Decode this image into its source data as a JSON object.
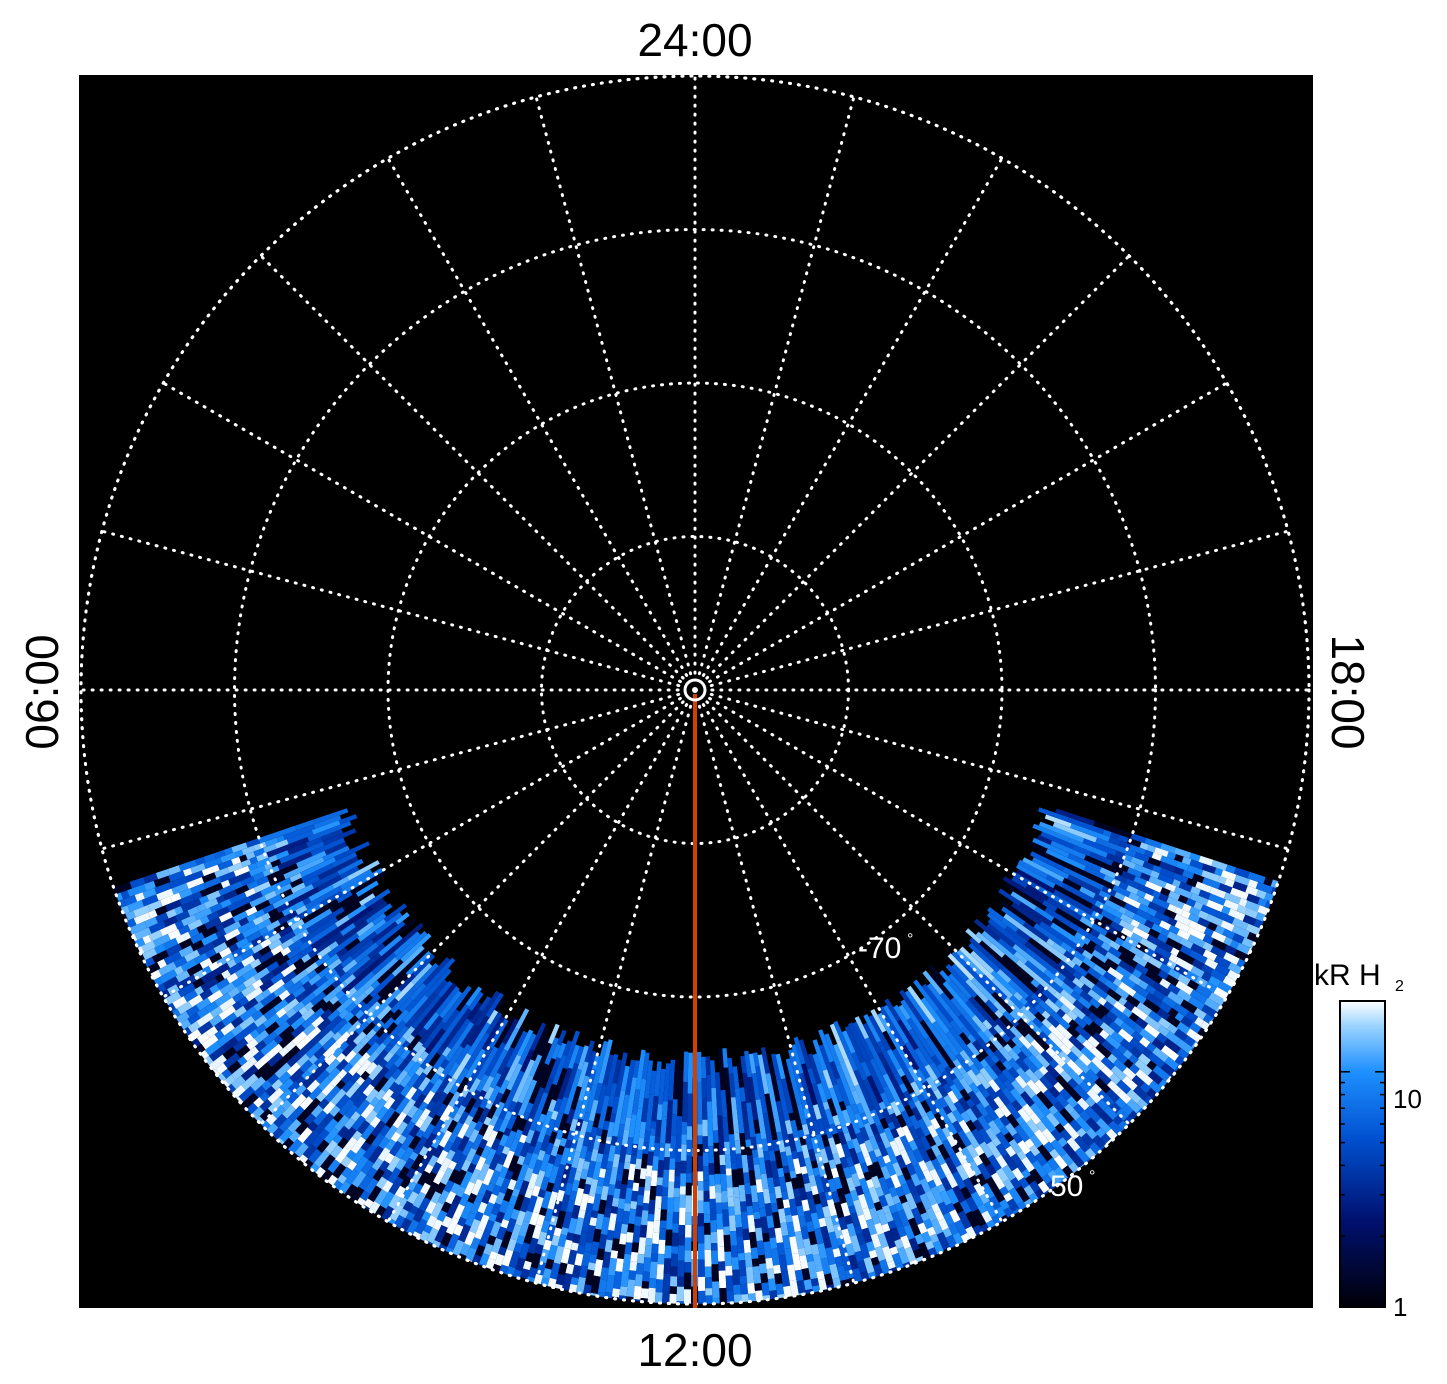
{
  "chart_data": {
    "type": "heatmap",
    "projection": "polar",
    "hemisphere": "south",
    "local_time_labels": {
      "top": "24:00",
      "left": "06:00",
      "right": "18:00",
      "bottom": "12:00"
    },
    "latitude_circles": [
      -90,
      -80,
      -70,
      -60,
      -50
    ],
    "meridian_step_hours": 1,
    "latitude_labels": [
      {
        "value": -70,
        "text": "-70",
        "unit": "°"
      },
      {
        "value": -50,
        "text": "-50",
        "unit": "°"
      }
    ],
    "colorbar": {
      "title": "kR H",
      "title_subscript": "2",
      "scale": "log",
      "range": [
        1,
        20
      ],
      "tick_labels": [
        {
          "value": 1,
          "text": "1"
        },
        {
          "value": 10,
          "text": "10"
        }
      ],
      "colormap": [
        "#000008",
        "#00106e",
        "#0050d0",
        "#1e90ff",
        "#9cd4ff",
        "#ffffff"
      ]
    },
    "observed_region": {
      "local_time_from": 7.25,
      "local_time_to": 16.75,
      "colatitude_min_deg": 25
    },
    "main_oval": {
      "colatitude_deg": 19,
      "local_time_from": 9.2,
      "local_time_to": 14.8
    },
    "reference_meridian": {
      "local_time": 12,
      "color": "#d04000"
    },
    "grid": true,
    "grid_color": "#ffffff",
    "background": "#000000"
  }
}
